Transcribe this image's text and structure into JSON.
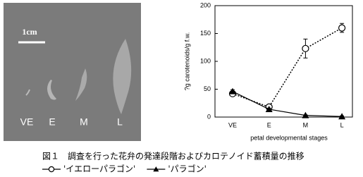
{
  "photo": {
    "scale_label": "1cm",
    "stage_labels": [
      "VE",
      "E",
      "M",
      "L"
    ]
  },
  "chart_data": {
    "type": "line",
    "y_label": "?g carotenoids/g f.w.",
    "x_label": "petal developmental stages",
    "categories": [
      "VE",
      "E",
      "M",
      "L"
    ],
    "series": [
      {
        "name": "'イエローパラゴン'",
        "color": "#000000",
        "marker": "open-circle",
        "line": "dotted",
        "values": [
          42,
          18,
          123,
          160
        ],
        "errors": [
          3,
          4,
          17,
          8
        ]
      },
      {
        "name": "'パラゴン'",
        "color": "#000000",
        "marker": "filled-triangle",
        "line": "solid",
        "values": [
          46,
          14,
          3,
          1
        ],
        "errors": [
          3,
          2,
          1,
          1
        ]
      }
    ],
    "ylim": [
      0,
      200
    ],
    "yticks": [
      0,
      50,
      100,
      150,
      200
    ],
    "grid": false
  },
  "caption": {
    "title": "図１　調査を行った花弁の発達段階およびカロテノイド蓄積量の推移"
  }
}
